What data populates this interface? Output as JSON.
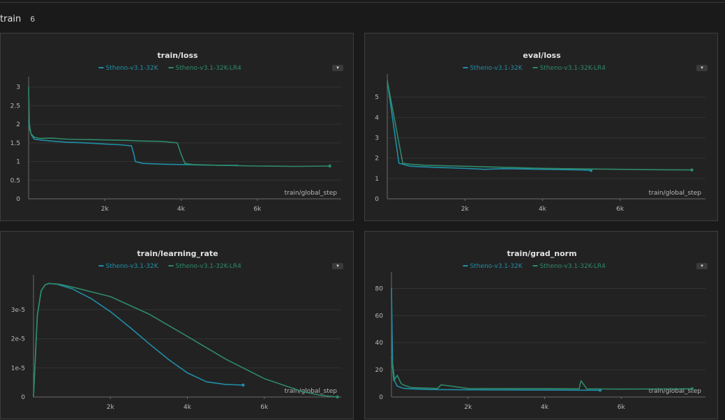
{
  "section": {
    "title": "train",
    "count": "6"
  },
  "colors": {
    "series1": "#1f8fa8",
    "series2": "#2f8a6a",
    "grid": "#333333",
    "axis": "#6a6a6a"
  },
  "legend": [
    "Stheno-v3.1-32K",
    "Stheno-v3.1-32K-LR4"
  ],
  "menu_icon": "chevron-down-icon",
  "chart_data": [
    {
      "id": "train-loss",
      "type": "line",
      "title": "train/loss",
      "xlabel": "train/global_step",
      "xlim": [
        0,
        8200
      ],
      "ylim": [
        0,
        3.2
      ],
      "xticks": [
        {
          "v": 2000,
          "label": "2k"
        },
        {
          "v": 4000,
          "label": "4k"
        },
        {
          "v": 6000,
          "label": "6k"
        }
      ],
      "yticks": [
        {
          "v": 0,
          "label": "0"
        },
        {
          "v": 0.5,
          "label": "0.5"
        },
        {
          "v": 1,
          "label": "1"
        },
        {
          "v": 1.5,
          "label": "1.5"
        },
        {
          "v": 2,
          "label": "2"
        },
        {
          "v": 2.5,
          "label": "2.5"
        },
        {
          "v": 3,
          "label": "3"
        }
      ],
      "series": [
        {
          "name": "Stheno-v3.1-32K",
          "x": [
            0,
            30,
            80,
            150,
            300,
            600,
            1000,
            1500,
            2000,
            2400,
            2700,
            2760,
            2800,
            3000,
            3500,
            4000,
            4500,
            5000,
            5500
          ],
          "y": [
            2.1,
            1.85,
            1.7,
            1.6,
            1.58,
            1.55,
            1.52,
            1.5,
            1.47,
            1.45,
            1.42,
            1.2,
            1.0,
            0.95,
            0.93,
            0.92,
            0.91,
            0.9,
            0.9
          ]
        },
        {
          "name": "Stheno-v3.1-32K-LR4",
          "x": [
            0,
            20,
            60,
            150,
            300,
            600,
            1000,
            1500,
            2000,
            2500,
            3000,
            3500,
            3900,
            4000,
            4100,
            4300,
            5000,
            6000,
            7000,
            7900
          ],
          "y": [
            3.0,
            2.0,
            1.75,
            1.65,
            1.62,
            1.63,
            1.6,
            1.59,
            1.58,
            1.57,
            1.55,
            1.54,
            1.5,
            1.2,
            0.95,
            0.92,
            0.9,
            0.88,
            0.87,
            0.88
          ]
        }
      ],
      "end_markers": [
        false,
        true
      ]
    },
    {
      "id": "eval-loss",
      "type": "line",
      "title": "eval/loss",
      "xlabel": "train/global_step",
      "xlim": [
        0,
        8200
      ],
      "ylim": [
        0,
        6
      ],
      "xticks": [
        {
          "v": 2000,
          "label": "2k"
        },
        {
          "v": 4000,
          "label": "4k"
        },
        {
          "v": 6000,
          "label": "6k"
        }
      ],
      "yticks": [
        {
          "v": 0,
          "label": "0"
        },
        {
          "v": 1,
          "label": "1"
        },
        {
          "v": 2,
          "label": "2"
        },
        {
          "v": 3,
          "label": "3"
        },
        {
          "v": 4,
          "label": "4"
        },
        {
          "v": 5,
          "label": "5"
        }
      ],
      "series": [
        {
          "name": "Stheno-v3.1-32K",
          "x": [
            0,
            300,
            600,
            1200,
            2000,
            2500,
            3000,
            4000,
            5000,
            5250
          ],
          "y": [
            5.8,
            1.75,
            1.6,
            1.55,
            1.5,
            1.45,
            1.48,
            1.45,
            1.42,
            1.4
          ]
        },
        {
          "name": "Stheno-v3.1-32K-LR4",
          "x": [
            0,
            400,
            600,
            1000,
            2000,
            3000,
            4000,
            5000,
            6000,
            7000,
            7850
          ],
          "y": [
            5.8,
            1.75,
            1.7,
            1.65,
            1.6,
            1.55,
            1.5,
            1.47,
            1.45,
            1.43,
            1.42
          ]
        }
      ],
      "end_markers": [
        true,
        true
      ]
    },
    {
      "id": "learning-rate",
      "type": "line",
      "title": "train/learning_rate",
      "xlabel": "train/global_step",
      "xlim": [
        0,
        8000
      ],
      "ylim": [
        0,
        4.1e-05
      ],
      "xticks": [
        {
          "v": 2000,
          "label": "2k"
        },
        {
          "v": 4000,
          "label": "4k"
        },
        {
          "v": 6000,
          "label": "6k"
        }
      ],
      "yticks": [
        {
          "v": 0,
          "label": "0"
        },
        {
          "v": 1e-05,
          "label": "1e-5"
        },
        {
          "v": 2e-05,
          "label": "2e-5"
        },
        {
          "v": 3e-05,
          "label": "3e-5"
        }
      ],
      "series": [
        {
          "name": "Stheno-v3.1-32K",
          "x": [
            0,
            100,
            200,
            300,
            400,
            600,
            1000,
            1500,
            2000,
            2500,
            3000,
            3500,
            4000,
            4500,
            5000,
            5250,
            5450
          ],
          "y": [
            0,
            2.8e-05,
            3.65e-05,
            3.85e-05,
            3.9e-05,
            3.88e-05,
            3.72e-05,
            3.38e-05,
            2.93e-05,
            2.4e-05,
            1.84e-05,
            1.3e-05,
            8.3e-06,
            5.2e-06,
            4.3e-06,
            4.2e-06,
            4.1e-06
          ]
        },
        {
          "name": "Stheno-v3.1-32K-LR4",
          "x": [
            0,
            100,
            200,
            300,
            400,
            700,
            1000,
            2000,
            3000,
            4000,
            5000,
            6000,
            7000,
            7500,
            7900
          ],
          "y": [
            0,
            2.8e-05,
            3.65e-05,
            3.85e-05,
            3.9e-05,
            3.87e-05,
            3.78e-05,
            3.45e-05,
            2.85e-05,
            2.08e-05,
            1.3e-05,
            6.3e-06,
            1.8e-06,
            5e-07,
            0
          ]
        }
      ],
      "end_markers": [
        true,
        true
      ]
    },
    {
      "id": "grad-norm",
      "type": "line",
      "title": "train/grad_norm",
      "xlabel": "train/global_step",
      "xlim": [
        0,
        8200
      ],
      "ylim": [
        0,
        90
      ],
      "xticks": [
        {
          "v": 2000,
          "label": "2k"
        },
        {
          "v": 4000,
          "label": "4k"
        },
        {
          "v": 6000,
          "label": "6k"
        }
      ],
      "yticks": [
        {
          "v": 0,
          "label": "0"
        },
        {
          "v": 20,
          "label": "20"
        },
        {
          "v": 40,
          "label": "40"
        },
        {
          "v": 60,
          "label": "60"
        },
        {
          "v": 80,
          "label": "80"
        }
      ],
      "series": [
        {
          "name": "Stheno-v3.1-32K",
          "x": [
            0,
            30,
            80,
            150,
            300,
            500,
            1000,
            2000,
            3000,
            4000,
            5000,
            5450
          ],
          "y": [
            80,
            25,
            12,
            8,
            6.5,
            6,
            5.5,
            5.3,
            5.2,
            5.1,
            5.0,
            5.0
          ]
        },
        {
          "name": "Stheno-v3.1-32K-LR4",
          "x": [
            0,
            60,
            150,
            250,
            300,
            400,
            500,
            1000,
            1200,
            1300,
            2000,
            3000,
            4000,
            4900,
            4950,
            5100,
            5500,
            6000,
            7000,
            7850
          ],
          "y": [
            30,
            12,
            16,
            10,
            9,
            8,
            7,
            6.5,
            6.3,
            9,
            6.3,
            6.2,
            6.1,
            6.0,
            12,
            6.0,
            5.9,
            5.8,
            5.9,
            6.0
          ]
        }
      ],
      "end_markers": [
        true,
        true
      ]
    }
  ]
}
